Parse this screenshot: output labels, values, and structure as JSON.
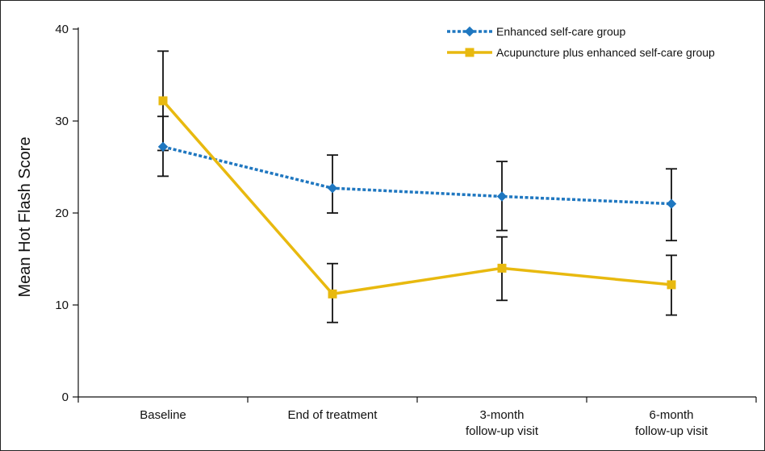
{
  "chart_data": {
    "type": "line",
    "title": "",
    "xlabel": "",
    "ylabel": "Mean Hot Flash Score",
    "ylim": [
      0,
      40
    ],
    "yticks": [
      0,
      10,
      20,
      30,
      40
    ],
    "grid": false,
    "legend_position": "top-right",
    "categories": [
      [
        "Baseline"
      ],
      [
        "End of treatment"
      ],
      [
        "3-month",
        "follow-up visit"
      ],
      [
        "6-month",
        "follow-up visit"
      ]
    ],
    "series": [
      {
        "name": "Enhanced self-care group",
        "color": "#1f77c0",
        "line_style": "dotted",
        "marker": "diamond",
        "values": [
          27.2,
          22.7,
          21.8,
          21.0
        ],
        "error_low": [
          24.0,
          20.0,
          18.1,
          17.0
        ],
        "error_high": [
          30.5,
          26.3,
          25.6,
          24.8
        ]
      },
      {
        "name": "Acupuncture plus enhanced self-care group",
        "color": "#e8b90f",
        "line_style": "solid",
        "marker": "square",
        "values": [
          32.2,
          11.2,
          14.0,
          12.2
        ],
        "error_low": [
          26.8,
          8.1,
          10.5,
          8.9
        ],
        "error_high": [
          37.6,
          14.5,
          17.4,
          15.4
        ]
      }
    ]
  }
}
